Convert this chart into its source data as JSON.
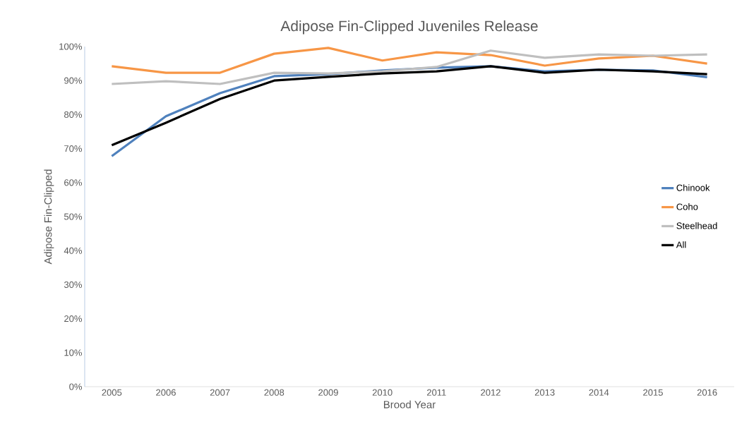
{
  "chart_data": {
    "type": "line",
    "title": "Adipose Fin-Clipped Juveniles Release",
    "xlabel": "Brood Year",
    "ylabel": "Adipose Fin-Clipped",
    "categories": [
      "2005",
      "2006",
      "2007",
      "2008",
      "2009",
      "2010",
      "2011",
      "2012",
      "2013",
      "2014",
      "2015",
      "2016"
    ],
    "series": [
      {
        "name": "Chinook",
        "color": "#4f81bd",
        "values": [
          67.8,
          79.5,
          86.3,
          91.3,
          91.9,
          93.0,
          93.8,
          94.2,
          92.7,
          93.2,
          93.0,
          91.0
        ]
      },
      {
        "name": "Coho",
        "color": "#f79646",
        "values": [
          94.2,
          92.3,
          92.3,
          97.9,
          99.6,
          95.9,
          98.3,
          97.5,
          94.4,
          96.5,
          97.3,
          95.0
        ]
      },
      {
        "name": "Steelhead",
        "color": "#bfbfbf",
        "values": [
          89.0,
          89.8,
          89.0,
          92.3,
          92.1,
          92.7,
          94.0,
          98.8,
          96.7,
          97.7,
          97.3,
          97.7
        ]
      },
      {
        "name": "All",
        "color": "#000000",
        "values": [
          71.0,
          77.6,
          84.6,
          90.0,
          91.1,
          92.1,
          92.7,
          94.2,
          92.3,
          93.2,
          92.7,
          91.9
        ]
      }
    ],
    "ylim": [
      0,
      100
    ],
    "yticks": [
      {
        "value": 0,
        "label": "0%"
      },
      {
        "value": 10,
        "label": "10%"
      },
      {
        "value": 20,
        "label": "20%"
      },
      {
        "value": 30,
        "label": "30%"
      },
      {
        "value": 40,
        "label": "40%"
      },
      {
        "value": 50,
        "label": "50%"
      },
      {
        "value": 60,
        "label": "60%"
      },
      {
        "value": 70,
        "label": "70%"
      },
      {
        "value": 80,
        "label": "80%"
      },
      {
        "value": 90,
        "label": "90%"
      },
      {
        "value": 100,
        "label": "100%"
      }
    ],
    "legend": "right",
    "grid": false,
    "marker": "none",
    "line_style": "solid"
  }
}
